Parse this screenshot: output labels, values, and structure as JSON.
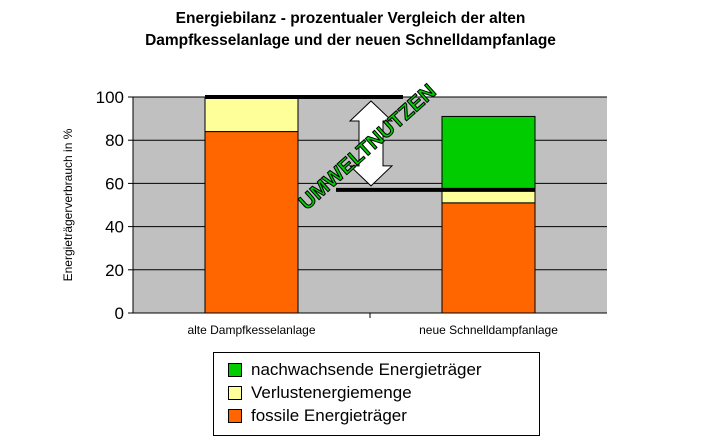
{
  "chart_data": {
    "type": "bar",
    "stacked": true,
    "title_line1": "Energiebilanz - prozentualer Vergleich der alten",
    "title_line2": "Dampfkesselanlage und der neuen Schnelldampfanlage",
    "ylabel": "Energieträgerverbrauch in %",
    "ylim": [
      0,
      100
    ],
    "yticks": [
      "0",
      "20",
      "40",
      "60",
      "80",
      "100"
    ],
    "grid": true,
    "categories": [
      "alte Dampfkesselanlage",
      "neue Schnelldampfanlage"
    ],
    "series": [
      {
        "name": "fossile Energieträger",
        "color": "#FF6600",
        "values": [
          84,
          51
        ]
      },
      {
        "name": "Verlustenergiemenge",
        "color": "#FFFF99",
        "values": [
          16,
          6
        ]
      },
      {
        "name": "nachwachsende Energieträger",
        "color": "#00CC00",
        "values": [
          0,
          34
        ]
      }
    ],
    "legend_order": [
      2,
      1,
      0
    ],
    "annotation": {
      "text": "UMWELTNUTZEN",
      "from": 100,
      "to": 57,
      "color": "#00CC00"
    }
  }
}
